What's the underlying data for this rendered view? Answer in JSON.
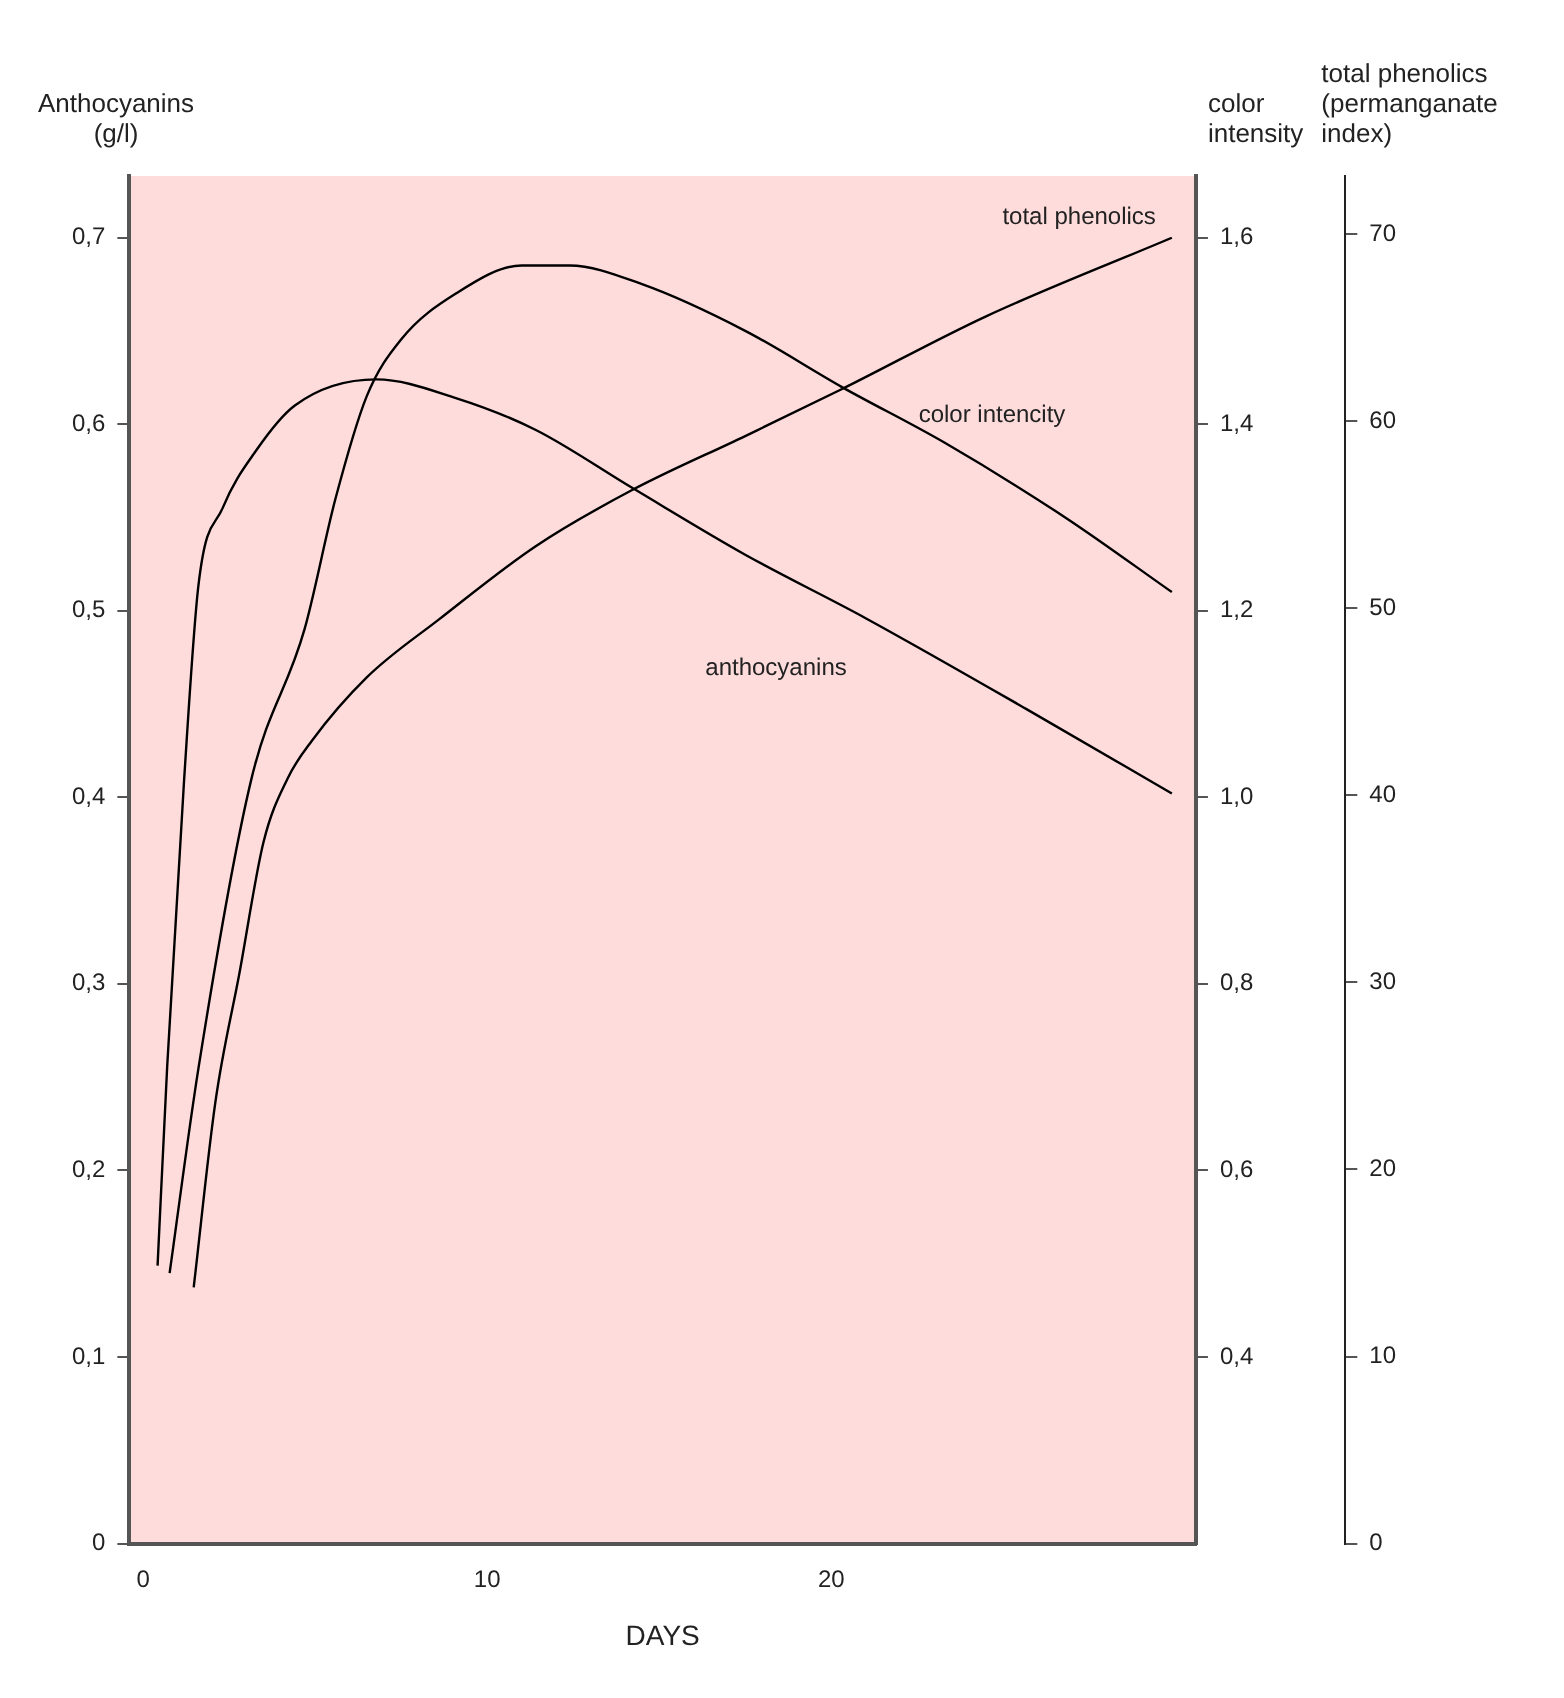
{
  "chart_data": {
    "type": "line",
    "xlabel": "DAYS",
    "ylabel": "Anthocyanins\n(g/l)",
    "y2label": "color\nintensity",
    "y3label": "total phenolics\n(permanganate\nindex)",
    "xlim": [
      -0.4,
      30.6
    ],
    "xticks": [
      0,
      10,
      20
    ],
    "ylim": [
      0,
      0.733
    ],
    "yticks": [
      0,
      {
        "value": 0.1,
        "label": "0,1"
      },
      {
        "value": 0.2,
        "label": "0,2"
      },
      {
        "value": 0.3,
        "label": "0,3"
      },
      {
        "value": 0.4,
        "label": "0,4"
      },
      {
        "value": 0.5,
        "label": "0,5"
      },
      {
        "value": 0.6,
        "label": "0,6"
      },
      {
        "value": 0.7,
        "label": "0,7"
      }
    ],
    "y2lim": [
      0.2,
      1.666
    ],
    "y2ticks": [
      {
        "value": 0.4,
        "label": "0,4"
      },
      {
        "value": 0.6,
        "label": "0,6"
      },
      {
        "value": 0.8,
        "label": "0,8"
      },
      {
        "value": 1.0,
        "label": "1,0"
      },
      {
        "value": 1.2,
        "label": "1,2"
      },
      {
        "value": 1.4,
        "label": "1,4"
      },
      {
        "value": 1.6,
        "label": "1,6"
      }
    ],
    "y3lim": [
      0,
      73.1
    ],
    "y3ticks": [
      0,
      10,
      20,
      30,
      40,
      50,
      60,
      70
    ],
    "grid": false,
    "legend": false,
    "marker": "none",
    "line_style": "solid",
    "series": [
      {
        "name": "anthocyanins",
        "color": "#000000",
        "axis": "y",
        "x": [
          0.42,
          0.7,
          1.19,
          1.61,
          2.31,
          3.29,
          4.41,
          6.78,
          9.09,
          11.4,
          14.2,
          17.5,
          21.0,
          25.7,
          29.9
        ],
        "values": [
          0.149,
          0.256,
          0.409,
          0.514,
          0.555,
          0.586,
          0.61,
          0.624,
          0.614,
          0.597,
          0.566,
          0.53,
          0.496,
          0.447,
          0.402
        ]
      },
      {
        "name": "color intencity",
        "color": "#000000",
        "axis": "y2",
        "x": [
          0.77,
          1.61,
          3.15,
          4.69,
          5.59,
          6.5,
          7.48,
          9.09,
          11.0,
          12.4,
          14.5,
          17.5,
          20.3,
          23.3,
          26.8,
          29.9
        ],
        "values": [
          0.49,
          0.71,
          1.02,
          1.18,
          1.32,
          1.43,
          1.49,
          1.54,
          1.57,
          1.57,
          1.55,
          1.5,
          1.44,
          1.38,
          1.3,
          1.22
        ]
      },
      {
        "name": "total phenolics",
        "color": "#000000",
        "axis": "y3",
        "x": [
          1.47,
          2.1,
          2.8,
          3.5,
          4.2,
          4.9,
          6.5,
          8.6,
          11.4,
          14.2,
          17.5,
          20.3,
          24.5,
          29.9
        ],
        "values": [
          13.7,
          23.6,
          30.5,
          37.5,
          40.9,
          42.9,
          46.3,
          49.4,
          53.3,
          56.3,
          59.2,
          61.7,
          65.6,
          69.8
        ]
      }
    ]
  }
}
